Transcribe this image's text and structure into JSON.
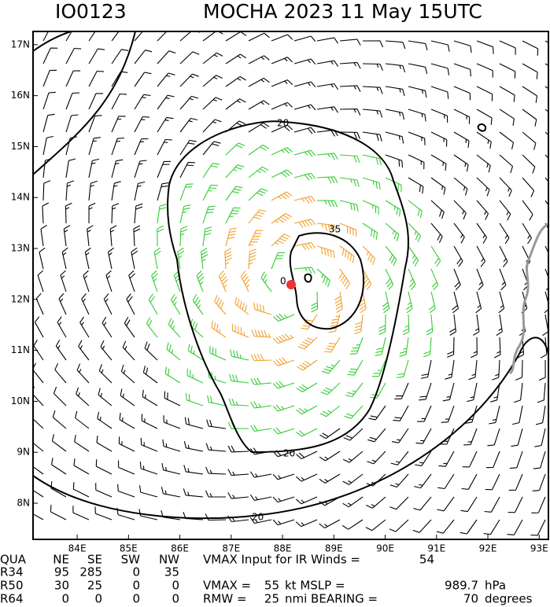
{
  "header": {
    "id": "IO0123",
    "title": "MOCHA 2023 11 May 15UTC"
  },
  "map": {
    "xlim": [
      83.14,
      93.18
    ],
    "ylim": [
      7.29,
      17.26
    ],
    "xticks": [
      {
        "value": 84,
        "label": "84E"
      },
      {
        "value": 85,
        "label": "85E"
      },
      {
        "value": 86,
        "label": "86E"
      },
      {
        "value": 87,
        "label": "87E"
      },
      {
        "value": 88,
        "label": "88E"
      },
      {
        "value": 89,
        "label": "89E"
      },
      {
        "value": 90,
        "label": "90E"
      },
      {
        "value": 91,
        "label": "91E"
      },
      {
        "value": 92,
        "label": "92E"
      },
      {
        "value": 93,
        "label": "93E"
      }
    ],
    "yticks": [
      {
        "value": 8,
        "label": "8N"
      },
      {
        "value": 9,
        "label": "9N"
      },
      {
        "value": 10,
        "label": "10N"
      },
      {
        "value": 11,
        "label": "11N"
      },
      {
        "value": 12,
        "label": "12N"
      },
      {
        "value": 13,
        "label": "13N"
      },
      {
        "value": 14,
        "label": "14N"
      },
      {
        "value": 15,
        "label": "15N"
      },
      {
        "value": 16,
        "label": "16N"
      },
      {
        "value": 17,
        "label": "17N"
      }
    ],
    "contour_labels": [
      "20",
      "20",
      "20",
      "35",
      "0"
    ]
  },
  "table": {
    "header": [
      "QUA",
      "NE",
      "SE",
      "SW",
      "NW"
    ],
    "rows": [
      [
        "R34",
        "95",
        "285",
        "0",
        "35"
      ],
      [
        "R50",
        "30",
        "25",
        "0",
        "0"
      ],
      [
        "R64",
        "0",
        "0",
        "0",
        "0"
      ]
    ]
  },
  "stats": {
    "vmax_ir_label": "VMAX Input for IR Winds =",
    "vmax_ir": "54",
    "vmax_label": "VMAX =",
    "vmax": "55",
    "mslp_label": "kt MSLP =",
    "mslp": "989.7",
    "mslp_unit": "hPa",
    "rmw_label": "RMW =",
    "rmw": "25",
    "bearing_label": "nmi BEARING =",
    "bearing": "70",
    "bearing_unit": "degrees"
  }
}
